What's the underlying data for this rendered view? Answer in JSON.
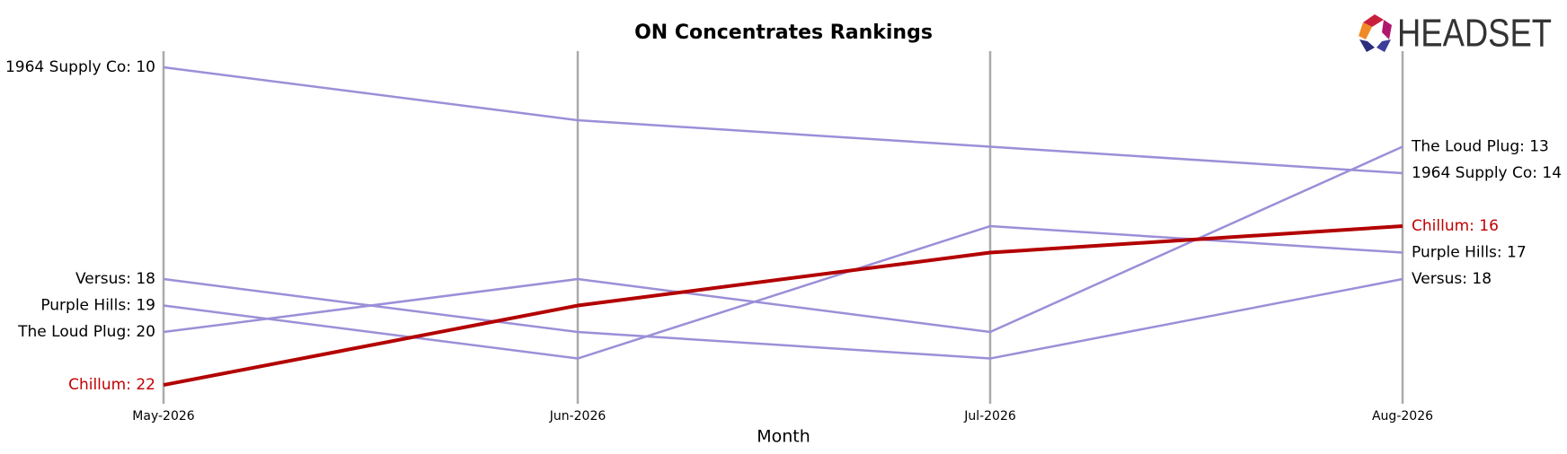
{
  "logo_text": "HEADSET",
  "chart_data": {
    "type": "bump",
    "title": "ON Concentrates Rankings",
    "xlabel": "Month",
    "categories": [
      "May-2026",
      "Jun-2026",
      "Jul-2026",
      "Aug-2026"
    ],
    "ylim": [
      22.71,
      9.39
    ],
    "grid": true,
    "label_color": "#000000",
    "series": [
      {
        "name": "1964 Supply Co",
        "color": "#9b8fd8",
        "values": [
          10,
          12,
          13,
          14
        ],
        "value_labels": [
          "1964 Supply Co: 10",
          null,
          null,
          "1964 Supply Co: 14"
        ]
      },
      {
        "name": "Versus",
        "color": "#9b8fd8",
        "values": [
          18,
          20,
          21,
          18
        ],
        "value_labels": [
          "Versus: 18",
          null,
          null,
          "Versus: 18"
        ]
      },
      {
        "name": "Purple Hills",
        "color": "#9b8fd8",
        "values": [
          19,
          21,
          16,
          17
        ],
        "value_labels": [
          "Purple Hills: 19",
          null,
          null,
          "Purple Hills: 17"
        ]
      },
      {
        "name": "The Loud Plug",
        "color": "#9b8fd8",
        "values": [
          20,
          18,
          20,
          13
        ],
        "value_labels": [
          "The Loud Plug: 20",
          null,
          null,
          "The Loud Plug: 13"
        ]
      },
      {
        "name": "Chillum",
        "color": "#b30000",
        "label_color": "#c00000",
        "width": 4,
        "values": [
          22,
          19,
          17,
          16
        ],
        "value_labels": [
          "Chillum: 22",
          null,
          null,
          "Chillum: 16"
        ]
      }
    ]
  }
}
